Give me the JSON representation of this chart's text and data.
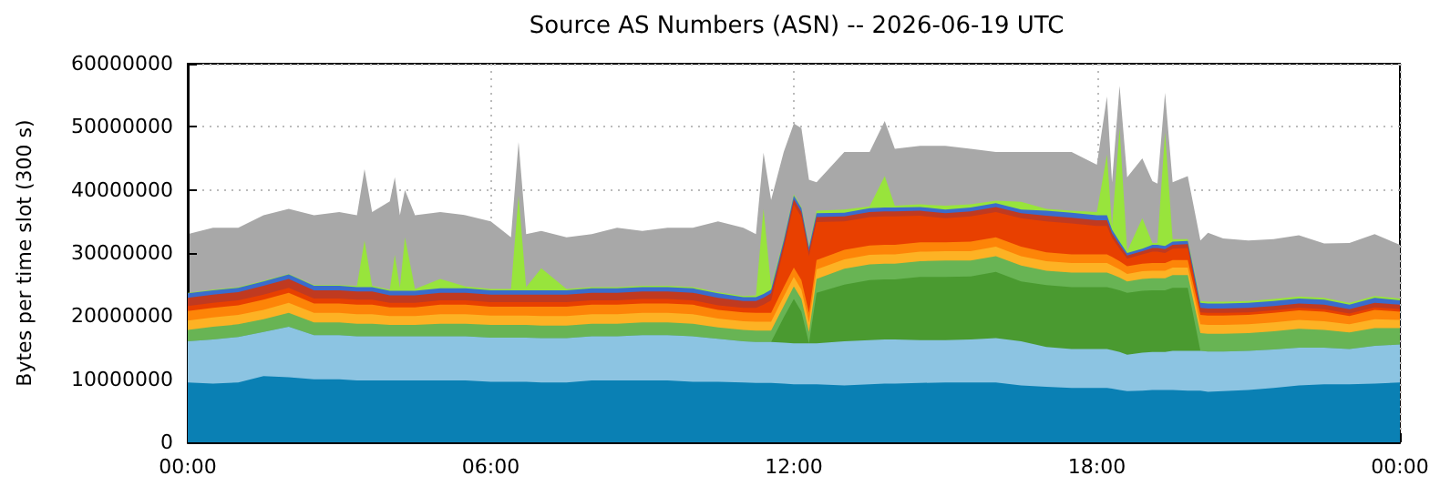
{
  "chart_data": {
    "type": "area",
    "title": "Source AS Numbers (ASN) -- 2026-06-19 UTC",
    "ylabel": "Bytes per time slot (300 s)",
    "stacked": true,
    "grid": true,
    "x": [
      0,
      0.5,
      1,
      1.5,
      2,
      2.5,
      3,
      3.35,
      3.5,
      3.65,
      4,
      4.1,
      4.2,
      4.3,
      4.5,
      5,
      5.5,
      6,
      6.4,
      6.55,
      6.7,
      7,
      7.5,
      8,
      8.5,
      9,
      9.5,
      10,
      10.5,
      11,
      11.25,
      11.4,
      11.55,
      11.8,
      12,
      12.15,
      12.3,
      12.45,
      13,
      13.5,
      13.8,
      14,
      14.5,
      15,
      15.5,
      16,
      16.5,
      17,
      17.5,
      18,
      18.2,
      18.3,
      18.45,
      18.6,
      18.9,
      19.1,
      19.2,
      19.35,
      19.5,
      19.8,
      20.05,
      20.2,
      20.5,
      21,
      21.5,
      22,
      22.5,
      23,
      23.5,
      24
    ],
    "xlim": [
      0,
      24
    ],
    "xticks": [
      {
        "value": 0,
        "label": "00:00"
      },
      {
        "value": 6,
        "label": "06:00"
      },
      {
        "value": 12,
        "label": "12:00"
      },
      {
        "value": 18,
        "label": "18:00"
      },
      {
        "value": 24,
        "label": "00:00"
      }
    ],
    "ylim": [
      0,
      60000000
    ],
    "yticks": [
      0,
      10000000,
      20000000,
      30000000,
      40000000,
      50000000,
      60000000
    ],
    "series": [
      {
        "color": "#0a80b4",
        "values": [
          9500000.0,
          9300000.0,
          9500000.0,
          10500000.0,
          10300000.0,
          10000000.0,
          10000000.0,
          9800000.0,
          9800000.0,
          9800000.0,
          9800000.0,
          9800000.0,
          9800000.0,
          9800000.0,
          9800000.0,
          9800000.0,
          9800000.0,
          9600000.0,
          9600000.0,
          9600000.0,
          9600000.0,
          9500000.0,
          9500000.0,
          9800000.0,
          9800000.0,
          9800000.0,
          9800000.0,
          9600000.0,
          9600000.0,
          9500000.0,
          9400000.0,
          9400000.0,
          9400000.0,
          9300000.0,
          9200000.0,
          9200000.0,
          9200000.0,
          9200000.0,
          9000000.0,
          9200000.0,
          9300000.0,
          9300000.0,
          9400000.0,
          9500000.0,
          9500000.0,
          9500000.0,
          9000000.0,
          8800000.0,
          8600000.0,
          8600000.0,
          8600000.0,
          8500000.0,
          8300000.0,
          8100000.0,
          8200000.0,
          8300000.0,
          8300000.0,
          8300000.0,
          8300000.0,
          8200000.0,
          8200000.0,
          8000000.0,
          8100000.0,
          8300000.0,
          8600000.0,
          9000000.0,
          9200000.0,
          9200000.0,
          9300000.0,
          9500000.0
        ]
      },
      {
        "color": "#8cc4e2",
        "values": [
          6500000.0,
          7000000.0,
          7200000.0,
          7000000.0,
          8000000.0,
          7000000.0,
          7000000.0,
          7000000.0,
          7000000.0,
          7000000.0,
          7000000.0,
          7000000.0,
          7000000.0,
          7000000.0,
          7000000.0,
          7000000.0,
          7000000.0,
          7000000.0,
          7000000.0,
          7000000.0,
          7000000.0,
          7000000.0,
          7000000.0,
          7000000.0,
          7000000.0,
          7200000.0,
          7200000.0,
          7200000.0,
          6800000.0,
          6500000.0,
          6500000.0,
          6500000.0,
          6500000.0,
          6500000.0,
          6500000.0,
          6500000.0,
          6500000.0,
          6500000.0,
          7000000.0,
          7000000.0,
          7000000.0,
          7000000.0,
          6800000.0,
          6700000.0,
          6800000.0,
          7000000.0,
          7000000.0,
          6300000.0,
          6200000.0,
          6200000.0,
          6200000.0,
          6100000.0,
          6000000.0,
          5800000.0,
          6000000.0,
          6000000.0,
          6000000.0,
          6000000.0,
          6200000.0,
          6300000.0,
          6300000.0,
          6400000.0,
          6300000.0,
          6200000.0,
          6100000.0,
          6000000.0,
          5800000.0,
          5600000.0,
          6000000.0,
          6000000.0
        ]
      },
      {
        "color": "#4a9a30",
        "values": [
          0,
          0,
          0,
          0,
          0,
          0,
          0,
          0,
          0,
          0,
          0,
          0,
          0,
          0,
          0,
          0,
          0,
          0,
          0,
          0,
          0,
          0,
          0,
          0,
          0,
          0,
          0,
          0,
          0,
          0,
          0,
          0,
          0,
          4000000.0,
          7000000.0,
          5000000.0,
          0,
          8000000.0,
          9000000.0,
          9500000.0,
          9500000.0,
          9500000.0,
          10000000.0,
          10000000.0,
          10000000.0,
          10500000.0,
          9500000.0,
          9800000.0,
          9800000.0,
          9800000.0,
          9800000.0,
          9800000.0,
          9800000.0,
          9800000.0,
          9800000.0,
          9800000.0,
          9800000.0,
          9800000.0,
          10000000.0,
          10000000.0,
          0,
          0,
          0,
          0,
          0,
          0,
          0,
          0,
          0,
          0
        ]
      },
      {
        "color": "#68b454",
        "values": [
          1800000.0,
          2000000.0,
          2000000.0,
          2000000.0,
          2200000.0,
          2000000.0,
          2000000.0,
          2000000.0,
          2000000.0,
          2000000.0,
          1800000.0,
          1800000.0,
          1800000.0,
          1800000.0,
          1800000.0,
          2000000.0,
          2000000.0,
          2000000.0,
          2000000.0,
          2000000.0,
          2000000.0,
          2000000.0,
          2000000.0,
          2000000.0,
          2000000.0,
          2000000.0,
          2000000.0,
          2000000.0,
          1800000.0,
          1800000.0,
          1800000.0,
          1800000.0,
          1800000.0,
          1800000.0,
          2000000.0,
          2000000.0,
          1800000.0,
          2200000.0,
          2500000.0,
          2500000.0,
          2500000.0,
          2500000.0,
          2500000.0,
          2600000.0,
          2500000.0,
          2500000.0,
          2500000.0,
          2300000.0,
          2300000.0,
          2300000.0,
          2300000.0,
          2200000.0,
          2000000.0,
          1800000.0,
          1900000.0,
          1900000.0,
          1900000.0,
          1900000.0,
          2000000.0,
          2000000.0,
          2800000.0,
          2800000.0,
          2800000.0,
          2800000.0,
          2900000.0,
          3000000.0,
          2800000.0,
          2600000.0,
          2800000.0,
          2600000.0
        ]
      },
      {
        "color": "#fdb224",
        "values": [
          1500000.0,
          1500000.0,
          1500000.0,
          1500000.0,
          1600000.0,
          1500000.0,
          1500000.0,
          1500000.0,
          1500000.0,
          1500000.0,
          1400000.0,
          1400000.0,
          1400000.0,
          1400000.0,
          1400000.0,
          1500000.0,
          1500000.0,
          1500000.0,
          1500000.0,
          1500000.0,
          1500000.0,
          1500000.0,
          1500000.0,
          1500000.0,
          1500000.0,
          1500000.0,
          1500000.0,
          1500000.0,
          1400000.0,
          1400000.0,
          1400000.0,
          1400000.0,
          1400000.0,
          1500000.0,
          1500000.0,
          1500000.0,
          1500000.0,
          1500000.0,
          1500000.0,
          1500000.0,
          1500000.0,
          1500000.0,
          1500000.0,
          1500000.0,
          1500000.0,
          1500000.0,
          1500000.0,
          1500000.0,
          1500000.0,
          1500000.0,
          1500000.0,
          1400000.0,
          1300000.0,
          1200000.0,
          1200000.0,
          1200000.0,
          1200000.0,
          1200000.0,
          1200000.0,
          1200000.0,
          1400000.0,
          1400000.0,
          1400000.0,
          1400000.0,
          1400000.0,
          1400000.0,
          1400000.0,
          1300000.0,
          1400000.0,
          1300000.0
        ]
      },
      {
        "color": "#fd8508",
        "values": [
          1500000.0,
          1500000.0,
          1500000.0,
          1600000.0,
          1600000.0,
          1500000.0,
          1500000.0,
          1500000.0,
          1500000.0,
          1500000.0,
          1400000.0,
          1400000.0,
          1400000.0,
          1400000.0,
          1400000.0,
          1500000.0,
          1500000.0,
          1400000.0,
          1400000.0,
          1400000.0,
          1400000.0,
          1500000.0,
          1500000.0,
          1500000.0,
          1500000.0,
          1500000.0,
          1500000.0,
          1500000.0,
          1400000.0,
          1400000.0,
          1400000.0,
          1400000.0,
          1400000.0,
          1500000.0,
          1500000.0,
          1500000.0,
          1500000.0,
          1500000.0,
          1500000.0,
          1500000.0,
          1500000.0,
          1500000.0,
          1500000.0,
          1400000.0,
          1500000.0,
          1500000.0,
          1500000.0,
          1400000.0,
          1400000.0,
          1400000.0,
          1400000.0,
          1400000.0,
          1300000.0,
          1200000.0,
          1200000.0,
          1200000.0,
          1200000.0,
          1200000.0,
          1200000.0,
          1200000.0,
          1500000.0,
          1500000.0,
          1500000.0,
          1500000.0,
          1500000.0,
          1500000.0,
          1500000.0,
          1300000.0,
          1500000.0,
          1300000.0
        ]
      },
      {
        "color": "#e84000",
        "values": [
          800000.0,
          800000.0,
          800000.0,
          800000.0,
          800000.0,
          800000.0,
          800000.0,
          800000.0,
          800000.0,
          800000.0,
          700000.0,
          700000.0,
          700000.0,
          700000.0,
          700000.0,
          700000.0,
          700000.0,
          700000.0,
          700000.0,
          700000.0,
          700000.0,
          700000.0,
          700000.0,
          700000.0,
          700000.0,
          700000.0,
          700000.0,
          700000.0,
          700000.0,
          700000.0,
          800000.0,
          1300000.0,
          2000000.0,
          6000000.0,
          10000000.0,
          10000000.0,
          9000000.0,
          6000000.0,
          4500000.0,
          4500000.0,
          4500000.0,
          4500000.0,
          4200000.0,
          3800000.0,
          4000000.0,
          4000000.0,
          4500000.0,
          4900000.0,
          4900000.0,
          4500000.0,
          4500000.0,
          3000000.0,
          2000000.0,
          1200000.0,
          1500000.0,
          1800000.0,
          1800000.0,
          1600000.0,
          1800000.0,
          1900000.0,
          400000.0,
          400000.0,
          400000.0,
          400000.0,
          400000.0,
          400000.0,
          400000.0,
          400000.0,
          400000.0,
          400000.0
        ]
      },
      {
        "color": "#c03a20",
        "values": [
          1300000.0,
          1300000.0,
          1300000.0,
          1400000.0,
          1400000.0,
          1300000.0,
          1300000.0,
          1300000.0,
          1300000.0,
          1300000.0,
          1200000.0,
          1200000.0,
          1200000.0,
          1200000.0,
          1200000.0,
          1200000.0,
          1200000.0,
          1200000.0,
          1200000.0,
          1200000.0,
          1200000.0,
          1200000.0,
          1200000.0,
          1200000.0,
          1200000.0,
          1200000.0,
          1200000.0,
          1200000.0,
          1200000.0,
          1100000.0,
          1100000.0,
          1100000.0,
          1100000.0,
          800000.0,
          800000.0,
          800000.0,
          800000.0,
          800000.0,
          800000.0,
          800000.0,
          800000.0,
          800000.0,
          800000.0,
          800000.0,
          800000.0,
          800000.0,
          800000.0,
          900000.0,
          900000.0,
          900000.0,
          900000.0,
          700000.0,
          600000.0,
          500000.0,
          500000.0,
          600000.0,
          600000.0,
          600000.0,
          600000.0,
          600000.0,
          700000.0,
          700000.0,
          700000.0,
          700000.0,
          700000.0,
          700000.0,
          700000.0,
          700000.0,
          700000.0,
          700000.0
        ]
      },
      {
        "color": "#3a6ccc",
        "values": [
          700000.0,
          700000.0,
          700000.0,
          700000.0,
          700000.0,
          700000.0,
          700000.0,
          700000.0,
          700000.0,
          700000.0,
          700000.0,
          700000.0,
          700000.0,
          700000.0,
          700000.0,
          700000.0,
          700000.0,
          700000.0,
          700000.0,
          700000.0,
          700000.0,
          700000.0,
          700000.0,
          700000.0,
          700000.0,
          700000.0,
          700000.0,
          700000.0,
          700000.0,
          600000.0,
          600000.0,
          600000.0,
          600000.0,
          600000.0,
          600000.0,
          600000.0,
          600000.0,
          600000.0,
          600000.0,
          600000.0,
          600000.0,
          600000.0,
          600000.0,
          600000.0,
          600000.0,
          600000.0,
          600000.0,
          800000.0,
          800000.0,
          800000.0,
          800000.0,
          600000.0,
          500000.0,
          400000.0,
          400000.0,
          500000.0,
          500000.0,
          500000.0,
          500000.0,
          500000.0,
          800000.0,
          800000.0,
          800000.0,
          800000.0,
          800000.0,
          800000.0,
          800000.0,
          700000.0,
          800000.0,
          700000.0
        ]
      },
      {
        "color": "#98e43c",
        "values": [
          100000.0,
          100000.0,
          100000.0,
          100000.0,
          100000.0,
          100000.0,
          100000.0,
          200000.0,
          7400000.0,
          200000.0,
          200000.0,
          5700000.0,
          500000.0,
          8500000.0,
          300000.0,
          1500000.0,
          300000.0,
          200000.0,
          200000.0,
          15000000.0,
          500000.0,
          3500000.0,
          200000.0,
          200000.0,
          200000.0,
          200000.0,
          200000.0,
          200000.0,
          200000.0,
          200000.0,
          300000.0,
          13500000.0,
          500000.0,
          200000.0,
          200000.0,
          200000.0,
          200000.0,
          400000.0,
          500000.0,
          300000.0,
          5000000.0,
          300000.0,
          400000.0,
          600000.0,
          500000.0,
          400000.0,
          1200000.0,
          300000.0,
          300000.0,
          500000.0,
          9600000.0,
          500000.0,
          18000000.0,
          300000.0,
          4800000.0,
          300000.0,
          300000.0,
          18000000.0,
          400000.0,
          300000.0,
          300000.0,
          300000.0,
          300000.0,
          300000.0,
          300000.0,
          300000.0,
          300000.0,
          300000.0,
          300000.0,
          300000.0
        ]
      },
      {
        "color": "#a8a8a8",
        "values": [
          9300000.0,
          9800000.0,
          9400000.0,
          10400000.0,
          10300000.0,
          11100000.0,
          11600000.0,
          11200000.0,
          11300000.0,
          11700000.0,
          14000000.0,
          12300000.0,
          11500000.0,
          7500000.0,
          11700000.0,
          10600000.0,
          11300000.0,
          10700000.0,
          8200000.0,
          8500000.0,
          8400000.0,
          5900000.0,
          8200000.0,
          8400000.0,
          9400000.0,
          8700000.0,
          9200000.0,
          9400000.0,
          11200000.0,
          10800000.0,
          9700000.0,
          8900000.0,
          13700000.0,
          13800000.0,
          11200000.0,
          12500000.0,
          10500000.0,
          4500000.0,
          9100000.0,
          8600000.0,
          8700000.0,
          9000000.0,
          9300000.0,
          9500000.0,
          8800000.0,
          7700000.0,
          7900000.0,
          9000000.0,
          9300000.0,
          7500000.0,
          9200000.0,
          7000000.0,
          6700000.0,
          11700000.0,
          9500000.0,
          9800000.0,
          9400000.0,
          6300000.0,
          9000000.0,
          10000000.0,
          9600000.0,
          10900000.0,
          10000000.0,
          9600000.0,
          9500000.0,
          9700000.0,
          8600000.0,
          9500000.0,
          9800000.0,
          8500000.0
        ]
      }
    ]
  }
}
